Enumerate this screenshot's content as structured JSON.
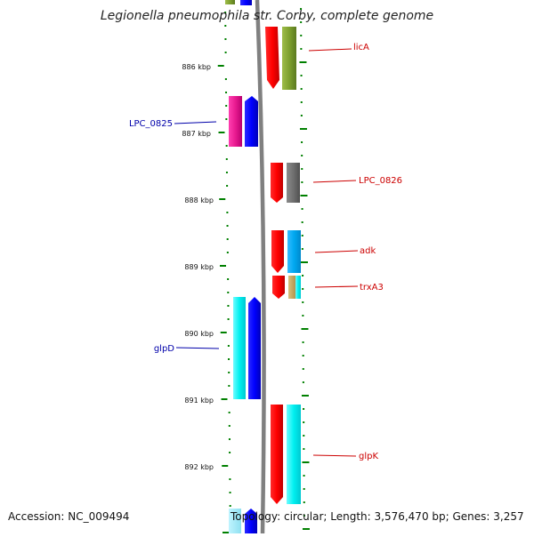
{
  "title": "Legionella pneumophila str. Corby, complete genome",
  "accession": "Accession: NC_009494",
  "topology": "Topology: circular; Length: 3,576,470 bp; Genes: 3,257",
  "ruler": [
    "886 kbp",
    "887 kbp",
    "888 kbp",
    "889 kbp",
    "890 kbp",
    "891 kbp",
    "892 kbp"
  ],
  "gene_labels": [
    {
      "name": "licA",
      "strand": "forward",
      "color": "#cc0000"
    },
    {
      "name": "LPC_0825",
      "strand": "reverse",
      "color": "#0000aa"
    },
    {
      "name": "LPC_0826",
      "strand": "forward",
      "color": "#cc0000"
    },
    {
      "name": "adk",
      "strand": "forward",
      "color": "#cc0000"
    },
    {
      "name": "trxA3",
      "strand": "forward",
      "color": "#cc0000"
    },
    {
      "name": "glpD",
      "strand": "reverse",
      "color": "#0000aa"
    },
    {
      "name": "glpK",
      "strand": "forward",
      "color": "#cc0000"
    }
  ],
  "colors": {
    "forward_cds": "#ff0000",
    "reverse_cds": "#0000ff",
    "backbone": "#808080",
    "ticks": "#008000"
  }
}
